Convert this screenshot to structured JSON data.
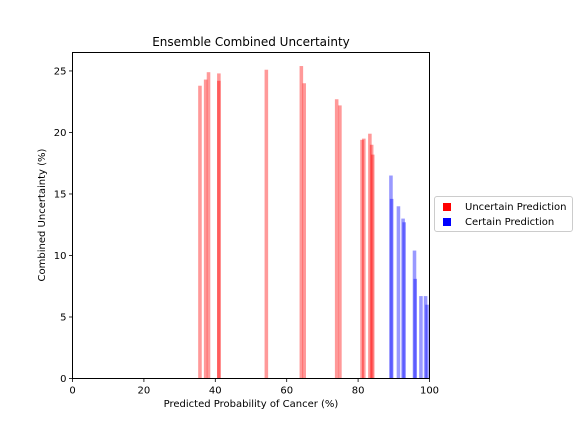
{
  "chart_data": {
    "type": "bar",
    "title": "Ensemble Combined Uncertainty",
    "xlabel": "Predicted Probability of Cancer (%)",
    "ylabel": "Combined Uncertainty (%)",
    "xlim": [
      0,
      100
    ],
    "ylim": [
      0,
      26.5
    ],
    "xticks": [
      "0",
      "20",
      "40",
      "60",
      "80",
      "100"
    ],
    "yticks": [
      "0",
      "5",
      "10",
      "15",
      "20",
      "25"
    ],
    "grid": false,
    "legend_position": "outside-right",
    "colors": {
      "uncertain": "#ff0000",
      "certain": "#0000ff",
      "bar_alpha": 0.4
    },
    "series": [
      {
        "name": "Uncertain Prediction",
        "color": "#ff0000",
        "x": [
          35.7,
          37.3,
          38.1,
          41.0,
          41.0,
          54.3,
          64.1,
          64.9,
          74.0,
          74.9,
          81.1,
          81.6,
          83.3,
          83.8,
          84.1
        ],
        "values": [
          23.8,
          24.3,
          24.9,
          24.8,
          24.2,
          25.1,
          25.4,
          24.0,
          22.7,
          22.2,
          19.4,
          19.5,
          19.9,
          19.0,
          18.2
        ]
      },
      {
        "name": "Certain Prediction",
        "color": "#0000ff",
        "x": [
          89.2,
          89.4,
          91.3,
          92.6,
          92.9,
          95.8,
          96.0,
          97.6,
          98.9,
          99.3
        ],
        "values": [
          16.5,
          14.6,
          14.0,
          13.0,
          12.7,
          10.4,
          8.1,
          6.7,
          6.7,
          6.0
        ]
      }
    ]
  }
}
